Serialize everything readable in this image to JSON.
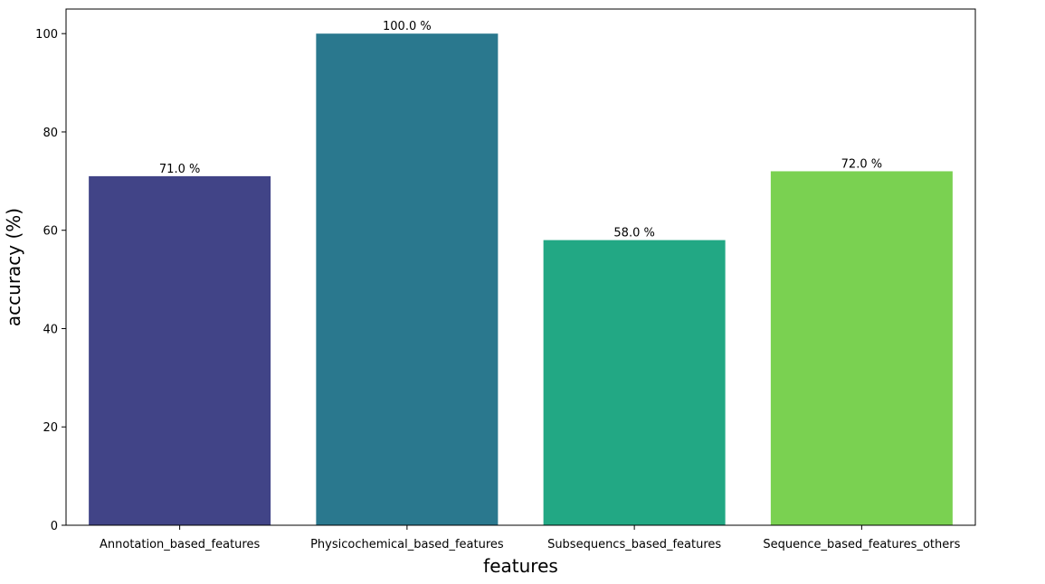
{
  "chart_data": {
    "type": "bar",
    "title": "",
    "xlabel": "features",
    "ylabel": "accuracy (%)",
    "categories": [
      "Annotation_based_features",
      "Physicochemical_based_features",
      "Subsequencs_based_features",
      "Sequence_based_features_others"
    ],
    "values": [
      71.0,
      100.0,
      58.0,
      72.0
    ],
    "value_labels": [
      "71.0 %",
      "100.0 %",
      "58.0 %",
      "72.0 %"
    ],
    "colors": [
      "#414487",
      "#2a788e",
      "#22a884",
      "#7ad151"
    ],
    "ylim": [
      0,
      105
    ],
    "yticks": [
      0,
      20,
      40,
      60,
      80,
      100
    ],
    "grid": false,
    "legend": "none"
  }
}
